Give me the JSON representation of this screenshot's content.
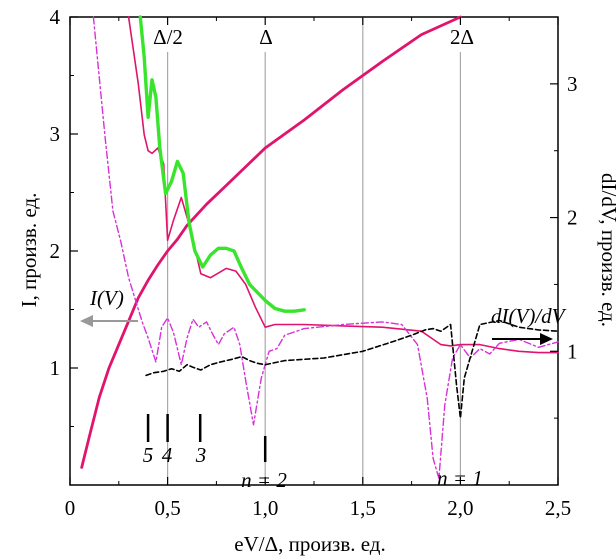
{
  "chart_data": {
    "type": "line",
    "xlabel": "eV/Δ, произв. ед.",
    "ylabel_left": "I, произв. ед.",
    "ylabel_right": "dI/dV, произв. ед.",
    "xlim": [
      0,
      2.5
    ],
    "ylim_left": [
      0,
      4
    ],
    "ylim_right": [
      0,
      3.5
    ],
    "x_ticks": [
      0,
      0.5,
      1.0,
      1.5,
      2.0,
      2.5
    ],
    "x_tick_labels": [
      "0",
      "0,5",
      "1,0",
      "1,5",
      "2,0",
      "2,5"
    ],
    "y_left_ticks": [
      1,
      2,
      3,
      4
    ],
    "y_left_tick_labels": [
      "1",
      "2",
      "3",
      "4"
    ],
    "y_right_ticks": [
      1,
      2,
      3
    ],
    "y_right_tick_labels": [
      "1",
      "2",
      "3"
    ],
    "vertical_lines": [
      {
        "x": 0.5,
        "label": "Δ/2"
      },
      {
        "x": 1.0,
        "label": "Δ"
      },
      {
        "x": 1.5,
        "label": ""
      },
      {
        "x": 2.0,
        "label": "2Δ"
      }
    ],
    "annotations": {
      "left_arrow_label": "I(V)",
      "right_arrow_label": "dI(V)/dV",
      "n2_label": "n = 2",
      "n1_label": "n = 1",
      "subharmonic_markers": [
        {
          "x": 0.4,
          "label": "5"
        },
        {
          "x": 0.5,
          "label": "4"
        },
        {
          "x": 0.667,
          "label": "3"
        }
      ],
      "n2_marker_x": 1.0
    },
    "series": [
      {
        "style": "solid-thick",
        "axis": "left",
        "color": "#e0146c",
        "x": [
          0.06,
          0.1,
          0.15,
          0.2,
          0.25,
          0.3,
          0.35,
          0.4,
          0.45,
          0.5,
          0.55,
          0.6,
          0.7,
          0.8,
          0.9,
          1.0,
          1.2,
          1.4,
          1.6,
          1.8,
          2.0
        ],
        "y": [
          0.15,
          0.42,
          0.75,
          1.0,
          1.2,
          1.4,
          1.6,
          1.75,
          1.88,
          2.0,
          2.1,
          2.22,
          2.4,
          2.56,
          2.72,
          2.88,
          3.12,
          3.38,
          3.62,
          3.85,
          4.06
        ]
      },
      {
        "style": "solid-thin",
        "axis": "right",
        "color": "#e0146c",
        "x": [
          0.3,
          0.35,
          0.38,
          0.4,
          0.42,
          0.45,
          0.48,
          0.5,
          0.53,
          0.57,
          0.62,
          0.67,
          0.72,
          0.8,
          0.85,
          0.9,
          0.95,
          1.0,
          1.05,
          1.2,
          1.4,
          1.6,
          1.8,
          1.85,
          1.9,
          1.95,
          2.0,
          2.1,
          2.2,
          2.3,
          2.4,
          2.5
        ],
        "y": [
          3.5,
          3.0,
          2.62,
          2.5,
          2.48,
          2.52,
          2.4,
          1.83,
          1.98,
          2.15,
          1.9,
          1.58,
          1.55,
          1.62,
          1.6,
          1.5,
          1.33,
          1.18,
          1.2,
          1.2,
          1.19,
          1.18,
          1.15,
          1.1,
          1.05,
          1.04,
          1.05,
          1.05,
          1.02,
          1.0,
          0.99,
          0.99
        ]
      },
      {
        "style": "solid-green",
        "axis": "right",
        "color": "#39e52c",
        "x": [
          0.36,
          0.38,
          0.4,
          0.42,
          0.44,
          0.46,
          0.49,
          0.52,
          0.55,
          0.58,
          0.61,
          0.64,
          0.68,
          0.72,
          0.76,
          0.8,
          0.84,
          0.88,
          0.92,
          1.0,
          1.05,
          1.1,
          1.15,
          1.2
        ],
        "y": [
          3.5,
          3.2,
          2.75,
          3.03,
          2.9,
          2.52,
          2.18,
          2.27,
          2.42,
          2.33,
          1.96,
          1.75,
          1.63,
          1.72,
          1.77,
          1.77,
          1.75,
          1.62,
          1.5,
          1.38,
          1.32,
          1.3,
          1.3,
          1.31
        ]
      },
      {
        "style": "dash-dot",
        "axis": "right",
        "color": "#d930d8",
        "x": [
          0.12,
          0.18,
          0.22,
          0.26,
          0.3,
          0.34,
          0.37,
          0.4,
          0.44,
          0.47,
          0.5,
          0.53,
          0.57,
          0.6,
          0.63,
          0.66,
          0.7,
          0.73,
          0.76,
          0.79,
          0.84,
          0.87,
          0.9,
          0.94,
          0.98,
          1.02,
          1.06,
          1.1,
          1.2,
          1.4,
          1.6,
          1.7,
          1.78,
          1.83,
          1.86,
          1.89,
          1.92,
          1.96,
          2.0,
          2.05,
          2.1,
          2.15,
          2.2,
          2.3,
          2.4,
          2.5
        ],
        "y": [
          3.5,
          2.6,
          2.05,
          1.82,
          1.55,
          1.36,
          1.22,
          1.1,
          0.92,
          1.18,
          1.25,
          1.14,
          0.9,
          1.1,
          1.24,
          1.18,
          1.22,
          1.13,
          1.05,
          1.13,
          1.18,
          1.05,
          0.78,
          0.45,
          0.8,
          1.0,
          1.02,
          1.12,
          1.17,
          1.2,
          1.22,
          1.2,
          1.05,
          0.65,
          0.2,
          0.05,
          0.6,
          0.95,
          1.05,
          0.95,
          1.02,
          0.98,
          1.06,
          1.09,
          1.03,
          1.07
        ]
      },
      {
        "style": "dashed",
        "axis": "right",
        "color": "#000000",
        "x": [
          0.39,
          0.43,
          0.48,
          0.52,
          0.56,
          0.6,
          0.63,
          0.67,
          0.72,
          0.77,
          0.83,
          0.88,
          0.92,
          0.96,
          1.0,
          1.1,
          1.3,
          1.5,
          1.65,
          1.75,
          1.82,
          1.86,
          1.9,
          1.95,
          1.98,
          2.0,
          2.02,
          2.1,
          2.2,
          2.3,
          2.4,
          2.5
        ],
        "y": [
          0.82,
          0.84,
          0.85,
          0.87,
          0.85,
          0.9,
          0.88,
          0.86,
          0.9,
          0.92,
          0.94,
          0.96,
          0.93,
          0.91,
          0.9,
          0.93,
          0.95,
          1.0,
          1.07,
          1.12,
          1.16,
          1.17,
          1.15,
          1.2,
          0.75,
          0.5,
          0.8,
          1.2,
          1.23,
          1.18,
          1.16,
          1.15
        ]
      }
    ]
  }
}
